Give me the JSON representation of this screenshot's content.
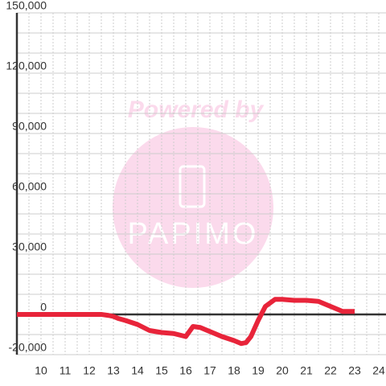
{
  "chart_data": {
    "type": "line",
    "watermark": {
      "caption": "Powered by",
      "logo": "PAPIMO"
    },
    "x": [
      9,
      12.5,
      12.8,
      13,
      13.2,
      13.5,
      14,
      14.5,
      15,
      15.5,
      16,
      16.3,
      16.6,
      17,
      17.5,
      18,
      18.3,
      18.5,
      18.7,
      19,
      19.3,
      19.7,
      20,
      20.5,
      21,
      21.5,
      22,
      22.5,
      23
    ],
    "series": [
      {
        "color": "#e8243a",
        "values": [
          0,
          0,
          -500,
          -1000,
          -2000,
          -3000,
          -5000,
          -8000,
          -9000,
          -9500,
          -11000,
          -6000,
          -6500,
          -8500,
          -11000,
          -13000,
          -14500,
          -14000,
          -11000,
          -3000,
          4000,
          7500,
          7500,
          7000,
          7000,
          6500,
          4000,
          1500,
          1500
        ]
      }
    ],
    "xlim": [
      9,
      24.3
    ],
    "xticks": [
      10,
      11,
      12,
      13,
      14,
      15,
      16,
      17,
      18,
      19,
      20,
      21,
      22,
      23,
      24
    ],
    "x_minor_ticks": [
      9.5,
      10.5,
      11.5,
      12.5,
      13.5,
      14.5,
      15.5,
      16.5,
      17.5,
      18.5,
      19.5,
      20.5,
      21.5,
      22.5,
      23.5
    ],
    "ylim": [
      -20000,
      150000
    ],
    "yticks": [
      {
        "value": -20000,
        "label": "-20,000"
      },
      0,
      {
        "value": 30000,
        "label": "30,000"
      },
      {
        "value": 60000,
        "label": "60,000"
      },
      {
        "value": 90000,
        "label": "90,000"
      },
      {
        "value": 120000,
        "label": "120,000"
      },
      {
        "value": 150000,
        "label": "150,000"
      }
    ],
    "y_minor_ticks": [
      -10000,
      10000,
      20000,
      40000,
      50000,
      70000,
      80000,
      100000,
      110000,
      130000,
      140000
    ],
    "grid": true
  }
}
